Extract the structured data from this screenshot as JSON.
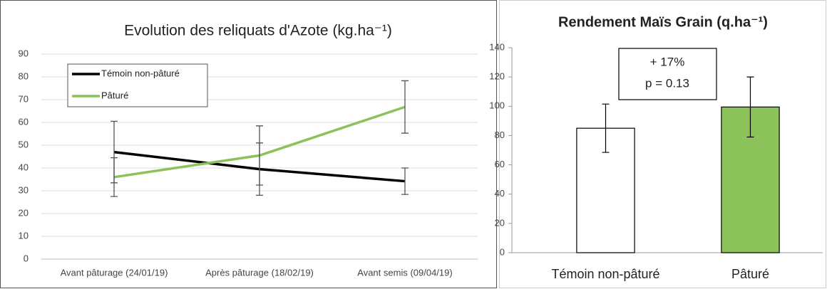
{
  "chart_data": [
    {
      "type": "line",
      "title": "Evolution des reliquats d'Azote (kg.ha⁻¹)",
      "categories": [
        "Avant pâturage (24/01/19)",
        "Après pâturage (18/02/19)",
        "Avant semis (09/04/19)"
      ],
      "series": [
        {
          "name": "Témoin non-pâturé",
          "color": "#000000",
          "values": [
            47,
            39.5,
            34.2
          ],
          "errors": [
            13.5,
            11.5,
            5.8
          ]
        },
        {
          "name": "Pâturé",
          "color": "#8bc35a",
          "values": [
            36,
            45.5,
            66.8
          ],
          "errors": [
            8.5,
            13,
            11.5
          ]
        }
      ],
      "ylim": [
        0,
        90
      ],
      "yticks": [
        0,
        10,
        20,
        30,
        40,
        50,
        60,
        70,
        80,
        90
      ],
      "grid": true,
      "legend": "upper left"
    },
    {
      "type": "bar",
      "title": "Rendement Maïs Grain (q.ha⁻¹)",
      "categories": [
        "Témoin non-pâturé",
        "Pâturé"
      ],
      "values": [
        85,
        99.5
      ],
      "errors": [
        16.5,
        20.5
      ],
      "colors": [
        "#ffffff",
        "#8bc35a"
      ],
      "ylim": [
        0,
        140
      ],
      "yticks": [
        0,
        20,
        40,
        60,
        80,
        100,
        120,
        140
      ],
      "grid": false,
      "annotation": [
        "+ 17%",
        "p = 0.13"
      ]
    }
  ]
}
